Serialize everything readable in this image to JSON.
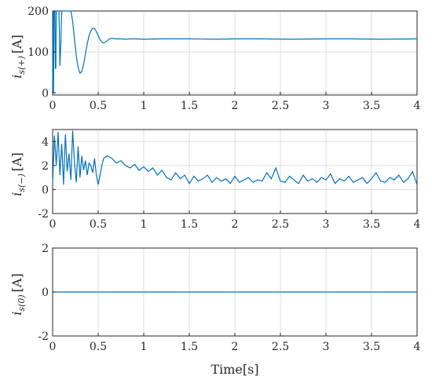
{
  "chart_data": [
    {
      "type": "line",
      "ylabel": "i_{s(+)} [A]",
      "ylabel_main": "i",
      "ylabel_sub": "s(+)",
      "ylabel_unit": "[A]",
      "xlim": [
        0,
        4
      ],
      "ylim": [
        -5,
        200
      ],
      "x_ticks": [
        "0",
        "0.5",
        "1",
        "1.5",
        "2",
        "2.5",
        "3",
        "3.5",
        "4"
      ],
      "y_ticks": [
        {
          "label": "200",
          "value": 200
        },
        {
          "label": "100",
          "value": 100
        },
        {
          "label": "0",
          "value": 0
        }
      ],
      "grid": true,
      "line_color": "#0072BD",
      "series": [
        {
          "x": [
            0,
            0.005,
            0.01,
            0.015,
            0.02,
            0.025,
            0.03,
            0.035,
            0.04,
            0.05,
            0.06,
            0.07,
            0.08,
            0.09,
            0.1,
            0.11,
            0.12,
            0.13,
            0.14,
            0.15,
            0.16,
            0.17,
            0.18,
            0.19,
            0.2,
            0.22,
            0.24,
            0.26,
            0.28,
            0.3,
            0.32,
            0.34,
            0.36,
            0.38,
            0.4,
            0.42,
            0.44,
            0.46,
            0.48,
            0.5,
            0.52,
            0.54,
            0.56,
            0.58,
            0.6,
            0.62,
            0.64,
            0.66,
            0.7,
            0.75,
            0.8,
            0.85,
            0.9,
            1.0,
            1.2,
            1.5,
            1.8,
            2.0,
            2.3,
            2.6,
            3.0,
            3.3,
            3.6,
            4.0
          ],
          "values": [
            0,
            200,
            0,
            200,
            200,
            200,
            60,
            60,
            200,
            200,
            200,
            200,
            66,
            120,
            200,
            200,
            200,
            200,
            200,
            200,
            200,
            200,
            200,
            200,
            200,
            175,
            130,
            90,
            62,
            48,
            52,
            70,
            95,
            120,
            140,
            152,
            158,
            157,
            150,
            140,
            130,
            124,
            122,
            124,
            128,
            131,
            133,
            133,
            132,
            132,
            131,
            132,
            132,
            131,
            132,
            132,
            131,
            132,
            132,
            131,
            132,
            132,
            131,
            132
          ]
        }
      ]
    },
    {
      "type": "line",
      "ylabel": "i_{s(−)} [A]",
      "ylabel_main": "i",
      "ylabel_sub": "s(−)",
      "ylabel_unit": "[A]",
      "xlim": [
        0,
        4
      ],
      "ylim": [
        -2,
        5
      ],
      "x_ticks": [
        "0",
        "0.5",
        "1",
        "1.5",
        "2",
        "2.5",
        "3",
        "3.5",
        "4"
      ],
      "y_ticks": [
        {
          "label": "4",
          "value": 4
        },
        {
          "label": "2",
          "value": 2
        },
        {
          "label": "0",
          "value": 0
        },
        {
          "label": "-2",
          "value": -2
        }
      ],
      "grid": true,
      "line_color": "#0072BD",
      "series": [
        {
          "x": [
            0,
            0.02,
            0.04,
            0.06,
            0.08,
            0.1,
            0.12,
            0.14,
            0.16,
            0.18,
            0.2,
            0.22,
            0.24,
            0.26,
            0.28,
            0.3,
            0.32,
            0.34,
            0.36,
            0.38,
            0.4,
            0.42,
            0.44,
            0.46,
            0.48,
            0.5,
            0.52,
            0.54,
            0.56,
            0.6,
            0.65,
            0.7,
            0.75,
            0.8,
            0.85,
            0.9,
            0.95,
            1.0,
            1.05,
            1.1,
            1.15,
            1.2,
            1.25,
            1.3,
            1.35,
            1.4,
            1.45,
            1.5,
            1.55,
            1.6,
            1.65,
            1.7,
            1.75,
            1.8,
            1.85,
            1.9,
            1.95,
            2.0,
            2.05,
            2.1,
            2.15,
            2.2,
            2.25,
            2.3,
            2.35,
            2.4,
            2.45,
            2.5,
            2.55,
            2.6,
            2.65,
            2.7,
            2.75,
            2.8,
            2.85,
            2.9,
            2.95,
            3.0,
            3.05,
            3.1,
            3.15,
            3.2,
            3.25,
            3.3,
            3.35,
            3.4,
            3.45,
            3.5,
            3.55,
            3.6,
            3.65,
            3.7,
            3.75,
            3.8,
            3.85,
            3.9,
            3.95,
            4.0
          ],
          "values": [
            0.5,
            4.5,
            2.0,
            4.8,
            1.2,
            3.8,
            0.4,
            4.6,
            1.5,
            3.0,
            0.8,
            4.9,
            2.2,
            0.6,
            3.6,
            1.0,
            2.8,
            1.6,
            2.4,
            1.2,
            2.2,
            2.0,
            1.4,
            2.6,
            1.2,
            0.4,
            1.2,
            2.0,
            2.6,
            2.8,
            2.6,
            2.2,
            2.4,
            2.0,
            1.8,
            2.1,
            1.6,
            1.9,
            1.5,
            1.8,
            1.2,
            1.6,
            1.0,
            0.8,
            1.4,
            0.9,
            1.2,
            0.5,
            1.1,
            0.7,
            0.9,
            1.2,
            0.6,
            1.0,
            0.7,
            0.9,
            0.5,
            1.1,
            0.6,
            0.8,
            1.0,
            0.6,
            0.8,
            0.7,
            1.4,
            0.9,
            1.8,
            0.7,
            0.6,
            1.1,
            0.8,
            0.5,
            1.2,
            0.7,
            0.9,
            0.6,
            1.0,
            0.8,
            1.3,
            0.5,
            0.9,
            0.7,
            1.1,
            0.6,
            0.8,
            1.0,
            0.5,
            0.9,
            1.4,
            0.7,
            0.6,
            1.0,
            0.8,
            1.2,
            0.6,
            0.9,
            1.5,
            0.4
          ]
        }
      ]
    },
    {
      "type": "line",
      "ylabel": "i_{s(0)} [A]",
      "ylabel_main": "i",
      "ylabel_sub": "s(0)",
      "ylabel_unit": "[A]",
      "xlabel": "Time[s]",
      "xlim": [
        0,
        4
      ],
      "ylim": [
        -2,
        2
      ],
      "x_ticks": [
        "0",
        "0.5",
        "1",
        "1.5",
        "2",
        "2.5",
        "3",
        "3.5",
        "4"
      ],
      "y_ticks": [
        {
          "label": "2",
          "value": 2
        },
        {
          "label": "0",
          "value": 0
        },
        {
          "label": "-2",
          "value": -2
        }
      ],
      "grid": true,
      "line_color": "#0072BD",
      "series": [
        {
          "x": [
            0,
            4
          ],
          "values": [
            0,
            0
          ]
        }
      ]
    }
  ]
}
